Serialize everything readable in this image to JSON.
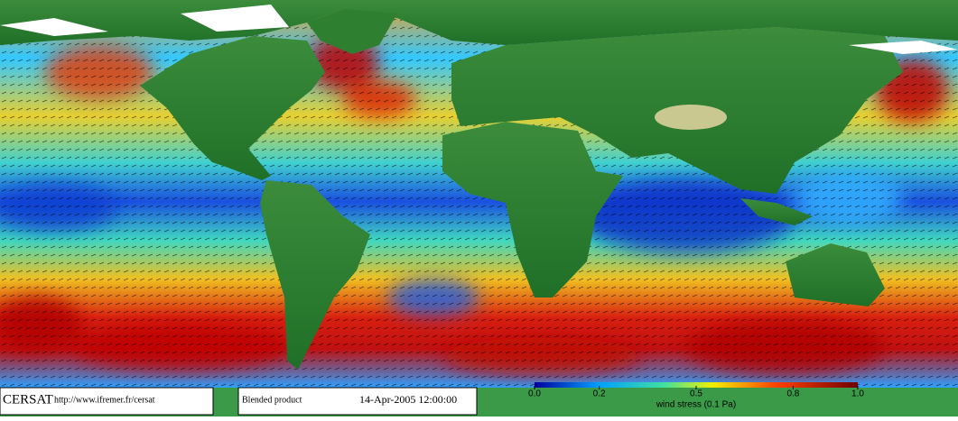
{
  "footer": {
    "logo": "CERSAT",
    "url": "http://www.ifremer.fr/cersat",
    "product": "Blended product",
    "date": "14-Apr-2005 12:00:00"
  },
  "colorbar": {
    "range": [
      0,
      1
    ],
    "ticks": [
      {
        "value": 0,
        "label": "0.0"
      },
      0.2,
      0.5,
      0.8,
      {
        "value": 1,
        "label": "1.0"
      }
    ],
    "label": "wind stress (0.1 Pa)"
  }
}
